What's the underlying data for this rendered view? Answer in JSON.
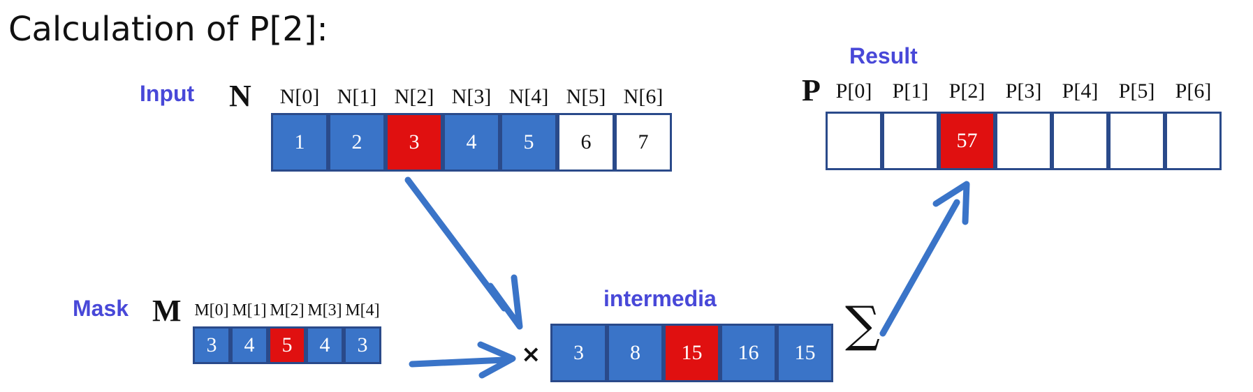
{
  "title": "Calculation of P[2]:",
  "input": {
    "label": "Input",
    "var": "N",
    "indices": [
      "N[0]",
      "N[1]",
      "N[2]",
      "N[3]",
      "N[4]",
      "N[5]",
      "N[6]"
    ],
    "values": [
      "1",
      "2",
      "3",
      "4",
      "5",
      "6",
      "7"
    ],
    "states": [
      "b",
      "b",
      "r",
      "b",
      "b",
      "w",
      "w"
    ]
  },
  "mask": {
    "label": "Mask",
    "var": "M",
    "indices": [
      "M[0]",
      "M[1]",
      "M[2]",
      "M[3]",
      "M[4]"
    ],
    "values": [
      "3",
      "4",
      "5",
      "4",
      "3"
    ],
    "states": [
      "b",
      "b",
      "r",
      "b",
      "b"
    ]
  },
  "intermediate": {
    "label": "intermedia",
    "values": [
      "3",
      "8",
      "15",
      "16",
      "15"
    ],
    "states": [
      "b",
      "b",
      "r",
      "b",
      "b"
    ]
  },
  "result": {
    "label": "Result",
    "var": "P",
    "indices": [
      "P[0]",
      "P[1]",
      "P[2]",
      "P[3]",
      "P[4]",
      "P[5]",
      "P[6]"
    ],
    "values": [
      "",
      "",
      "57",
      "",
      "",
      "",
      ""
    ],
    "states": [
      "w",
      "w",
      "r",
      "w",
      "w",
      "w",
      "w"
    ]
  },
  "symbols": {
    "times": "×",
    "sum": "∑"
  },
  "colors": {
    "cell_blue": "#3a74c8",
    "cell_red": "#e01010",
    "arrow": "#3a74c8",
    "label": "#4848d8"
  }
}
